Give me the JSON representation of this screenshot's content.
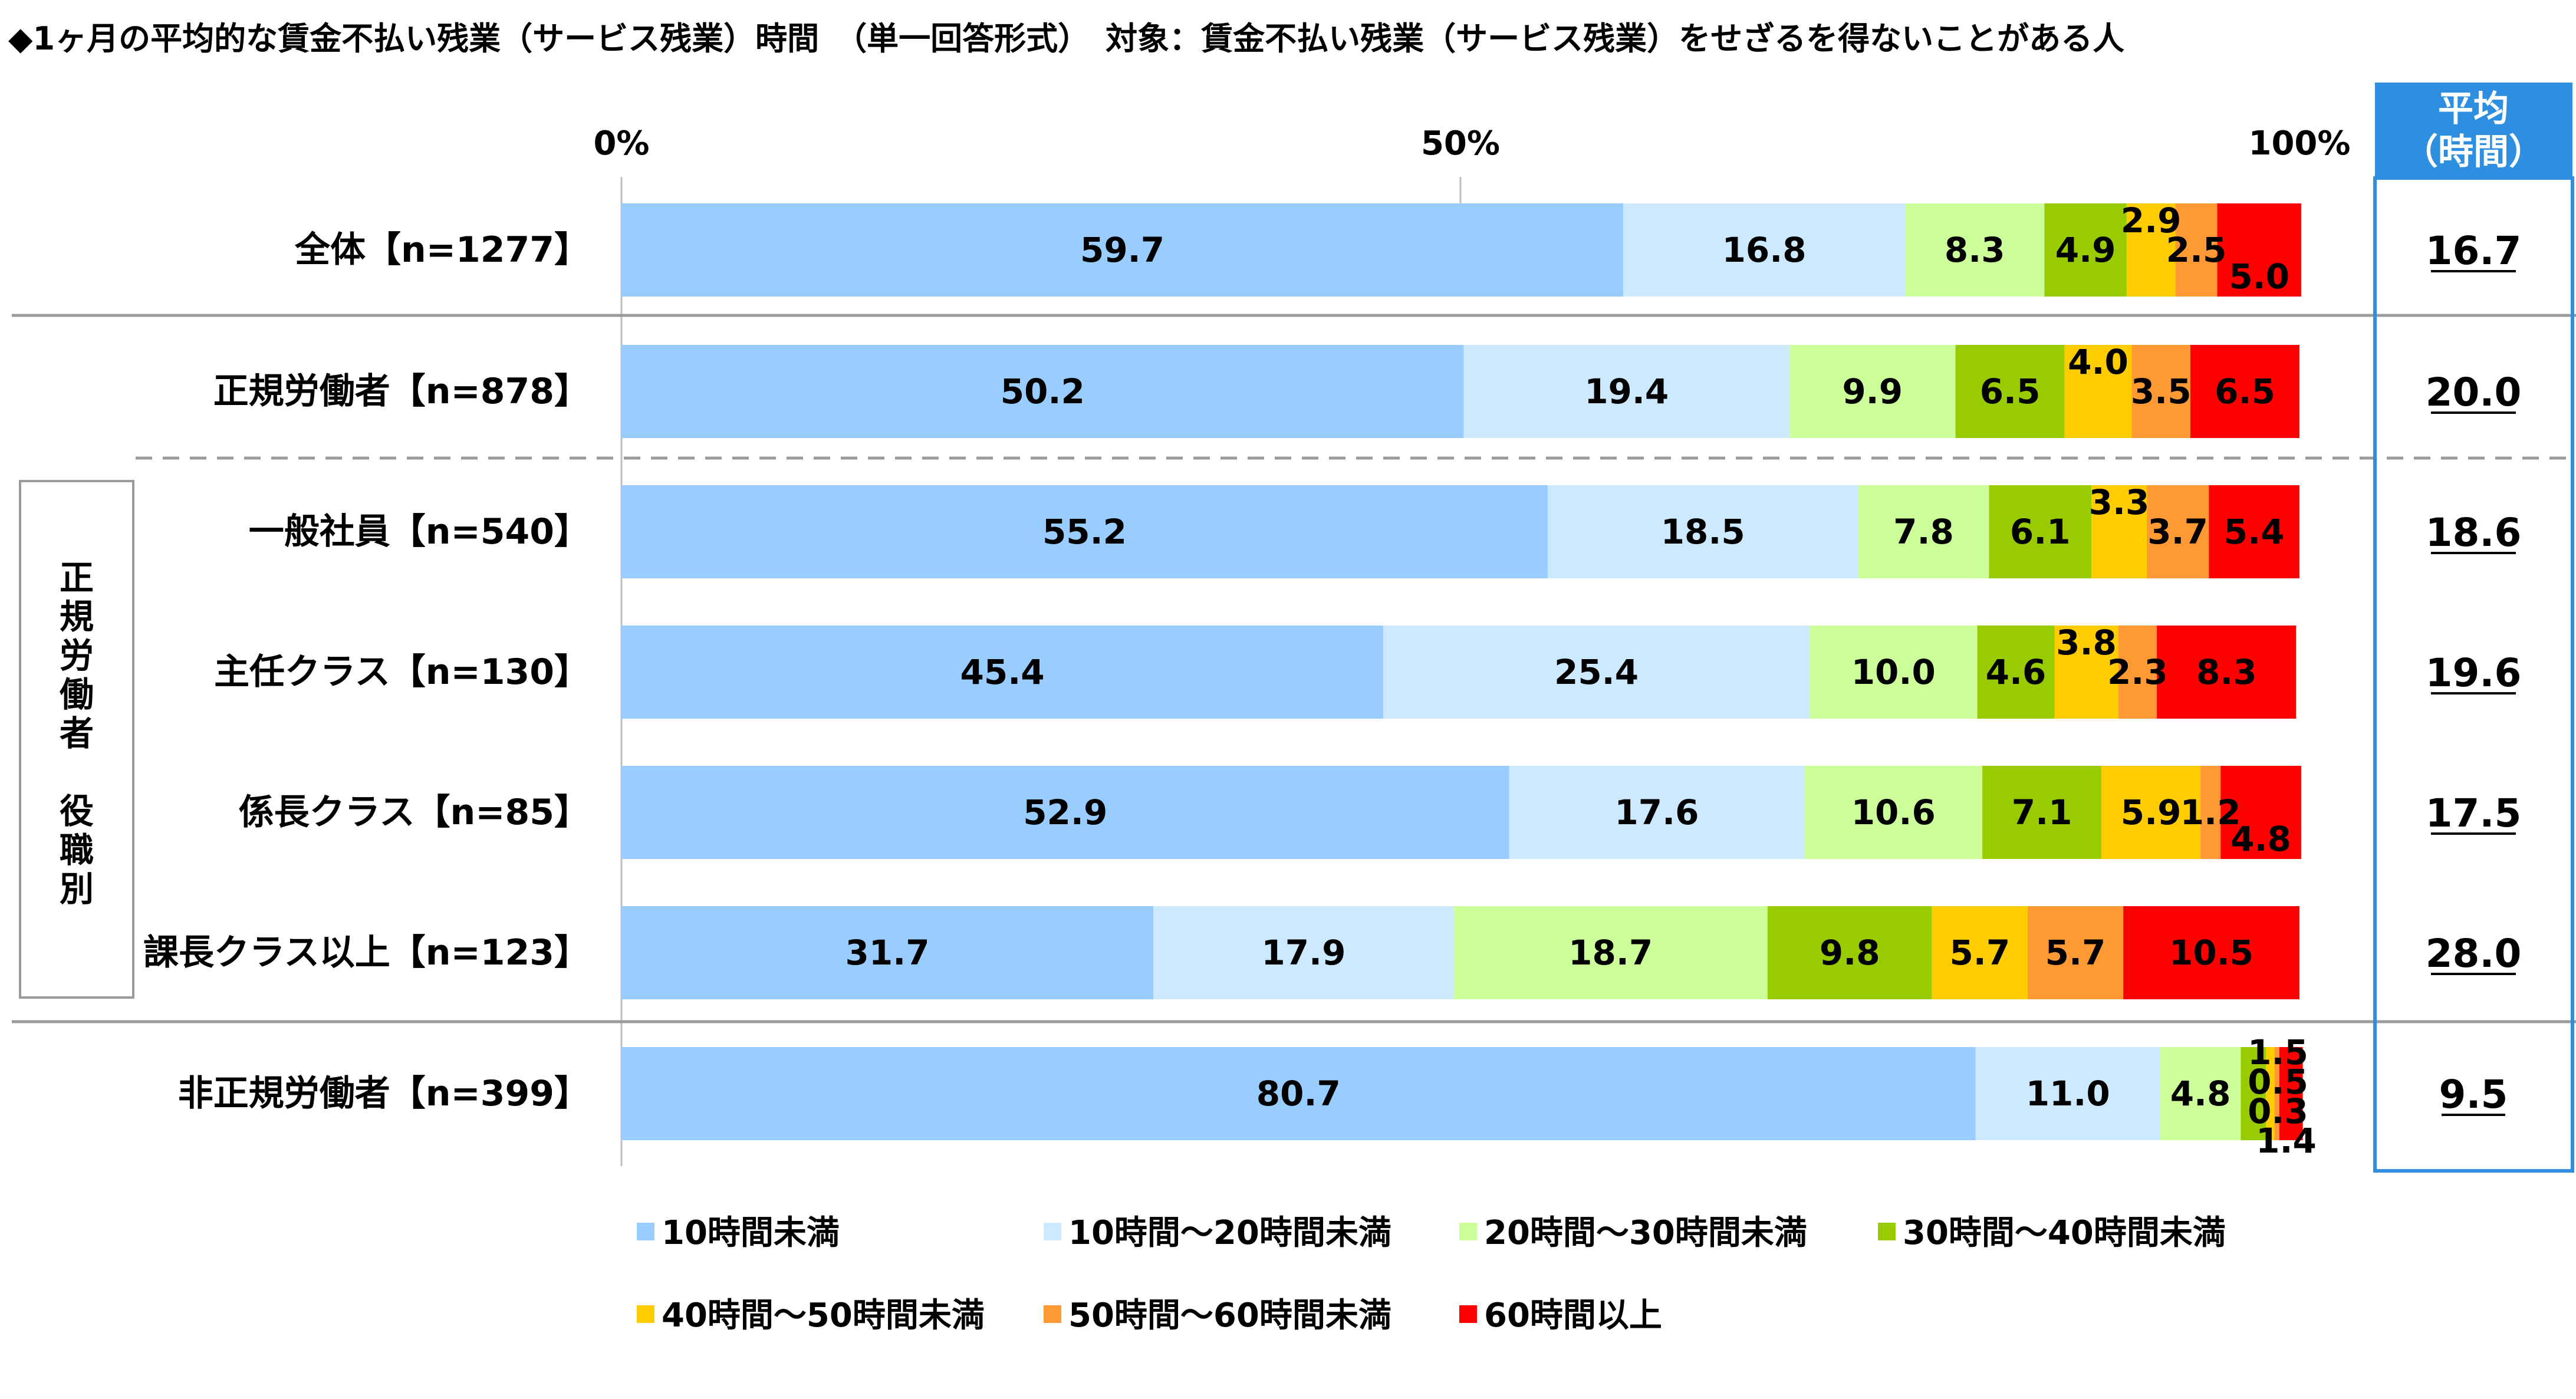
{
  "title": "◆1ヶ月の平均的な賃金不払い残業（サービス残業）時間　（単一回答形式）　対象：賃金不払い残業（サービス残業）をせざるを得ないことがある人",
  "avg_header": [
    "平均",
    "（時間）"
  ],
  "group_label": [
    "正",
    "規",
    "労",
    "働",
    "者",
    "",
    "役",
    "職",
    "別"
  ],
  "colors": [
    "#99ccff",
    "#cce9ff",
    "#ccff99",
    "#99cc00",
    "#ffcc00",
    "#ff9933",
    "#ff0000"
  ],
  "chart_data": {
    "type": "bar",
    "orientation": "horizontal",
    "stacked": true,
    "xlim": [
      0,
      100
    ],
    "x_ticks": [
      "0%",
      "50%",
      "100%"
    ],
    "grid": false,
    "legend_position": "bottom",
    "categories": [
      "全体【n=1277】",
      "正規労働者【n=878】",
      "一般社員【n=540】",
      "主任クラス【n=130】",
      "係長クラス【n=85】",
      "課長クラス以上【n=123】",
      "非正規労働者【n=399】"
    ],
    "series": [
      {
        "name": "10時間未満",
        "values": [
          59.7,
          50.2,
          55.2,
          45.4,
          52.9,
          31.7,
          80.7
        ]
      },
      {
        "name": "10時間～20時間未満",
        "values": [
          16.8,
          19.4,
          18.5,
          25.4,
          17.6,
          17.9,
          11.0
        ]
      },
      {
        "name": "20時間～30時間未満",
        "values": [
          8.3,
          9.9,
          7.8,
          10.0,
          10.6,
          18.7,
          4.8
        ]
      },
      {
        "name": "30時間～40時間未満",
        "values": [
          4.9,
          6.5,
          6.1,
          4.6,
          7.1,
          9.8,
          1.5
        ]
      },
      {
        "name": "40時間～50時間未満",
        "values": [
          2.9,
          4.0,
          3.3,
          3.8,
          5.9,
          5.7,
          0.5
        ]
      },
      {
        "name": "50時間～60時間未満",
        "values": [
          2.5,
          3.5,
          3.7,
          2.3,
          1.2,
          5.7,
          0.3
        ]
      },
      {
        "name": "60時間以上",
        "values": [
          5.0,
          6.5,
          5.4,
          8.3,
          4.8,
          10.5,
          1.4
        ]
      }
    ],
    "averages": [
      "16.7",
      "20.0",
      "18.6",
      "19.6",
      "17.5",
      "28.0",
      "9.5"
    ]
  }
}
